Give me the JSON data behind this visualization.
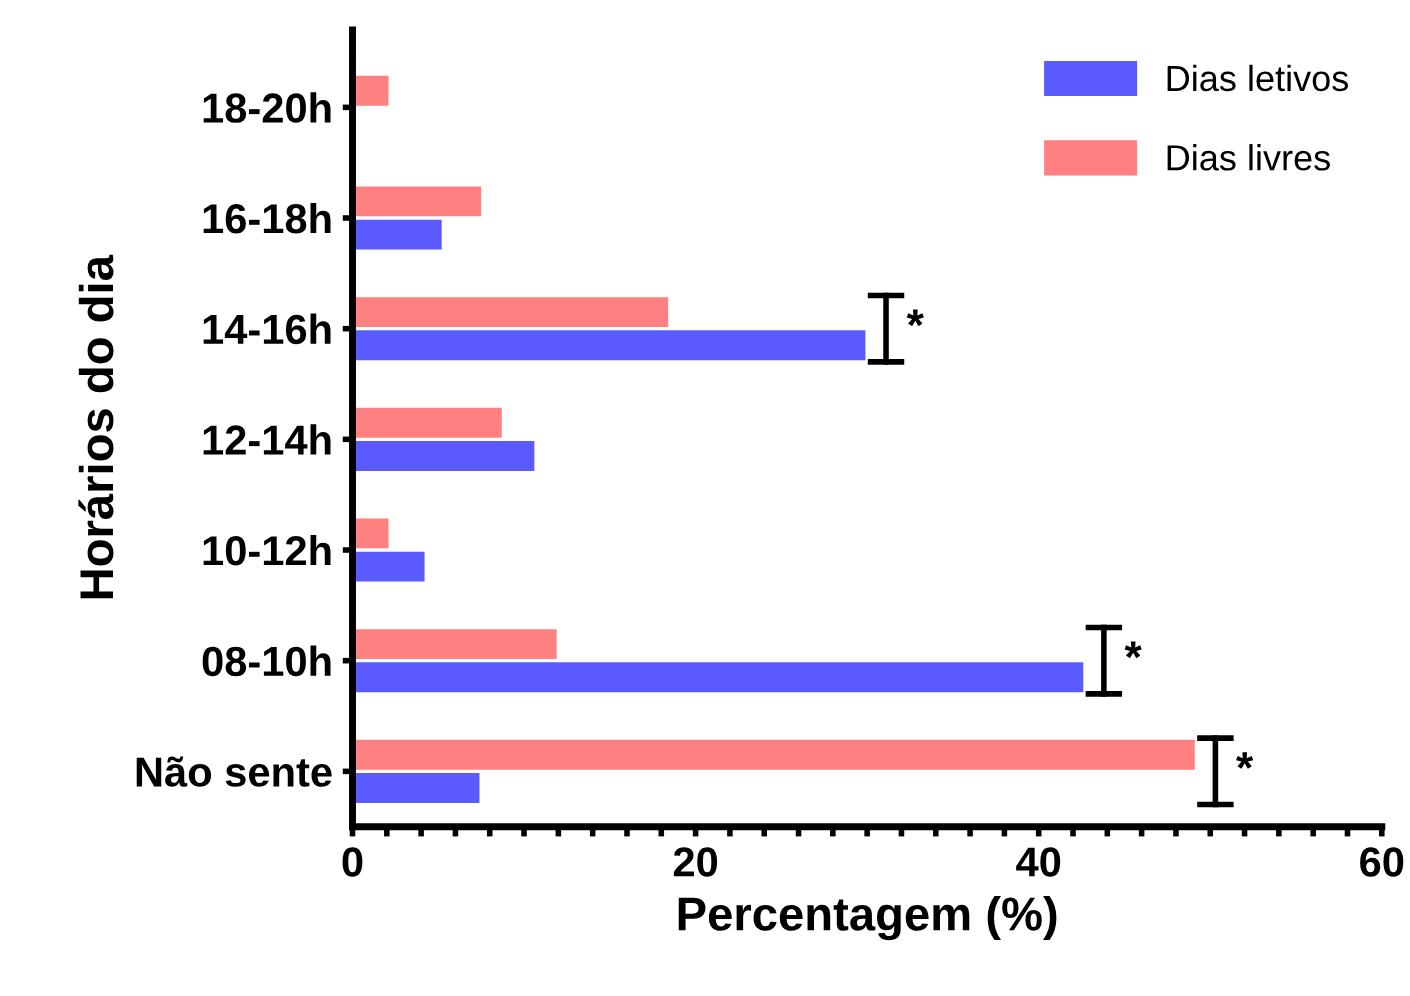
{
  "chart_data": {
    "type": "bar",
    "orientation": "horizontal",
    "xlabel": "Percentagem (%)",
    "ylabel": "Horários do dia",
    "categories": [
      "18-20h",
      "16-18h",
      "14-16h",
      "12-14h",
      "10-12h",
      "08-10h",
      "Não sente"
    ],
    "series": [
      {
        "name": "Dias letivos",
        "color": "#5a5aff",
        "values": [
          null,
          5.2,
          29.9,
          10.6,
          4.2,
          42.6,
          7.4
        ]
      },
      {
        "name": "Dias livres",
        "color": "#ff8080",
        "values": [
          2.1,
          7.5,
          18.4,
          8.7,
          2.1,
          11.9,
          49.1
        ]
      }
    ],
    "xlim": [
      0,
      60
    ],
    "xticks": [
      0,
      {
        "value": 2,
        "label": null
      },
      {
        "value": 4,
        "label": null
      },
      {
        "value": 6,
        "label": null
      },
      {
        "value": 8,
        "label": null
      },
      {
        "value": 10,
        "label": null
      },
      {
        "value": 12,
        "label": null
      },
      {
        "value": 14,
        "label": null
      },
      {
        "value": 16,
        "label": null
      },
      {
        "value": 18,
        "label": null
      },
      20,
      {
        "value": 22,
        "label": null
      },
      {
        "value": 24,
        "label": null
      },
      {
        "value": 26,
        "label": null
      },
      {
        "value": 28,
        "label": null
      },
      {
        "value": 30,
        "label": null
      },
      {
        "value": 32,
        "label": null
      },
      {
        "value": 34,
        "label": null
      },
      {
        "value": 36,
        "label": null
      },
      {
        "value": 38,
        "label": null
      },
      40,
      {
        "value": 42,
        "label": null
      },
      {
        "value": 44,
        "label": null
      },
      {
        "value": 46,
        "label": null
      },
      {
        "value": 48,
        "label": null
      },
      {
        "value": 50,
        "label": null
      },
      {
        "value": 52,
        "label": null
      },
      {
        "value": 54,
        "label": null
      },
      {
        "value": 56,
        "label": null
      },
      {
        "value": 58,
        "label": null
      },
      60
    ],
    "annotations": [
      {
        "text": "*",
        "x": 29.9,
        "y": "14-16h"
      },
      {
        "text": "*",
        "x": 42.6,
        "y": "08-10h"
      },
      {
        "text": "*",
        "x": 49.1,
        "y": "Não sente"
      }
    ],
    "legend": "top right",
    "grid": false
  }
}
